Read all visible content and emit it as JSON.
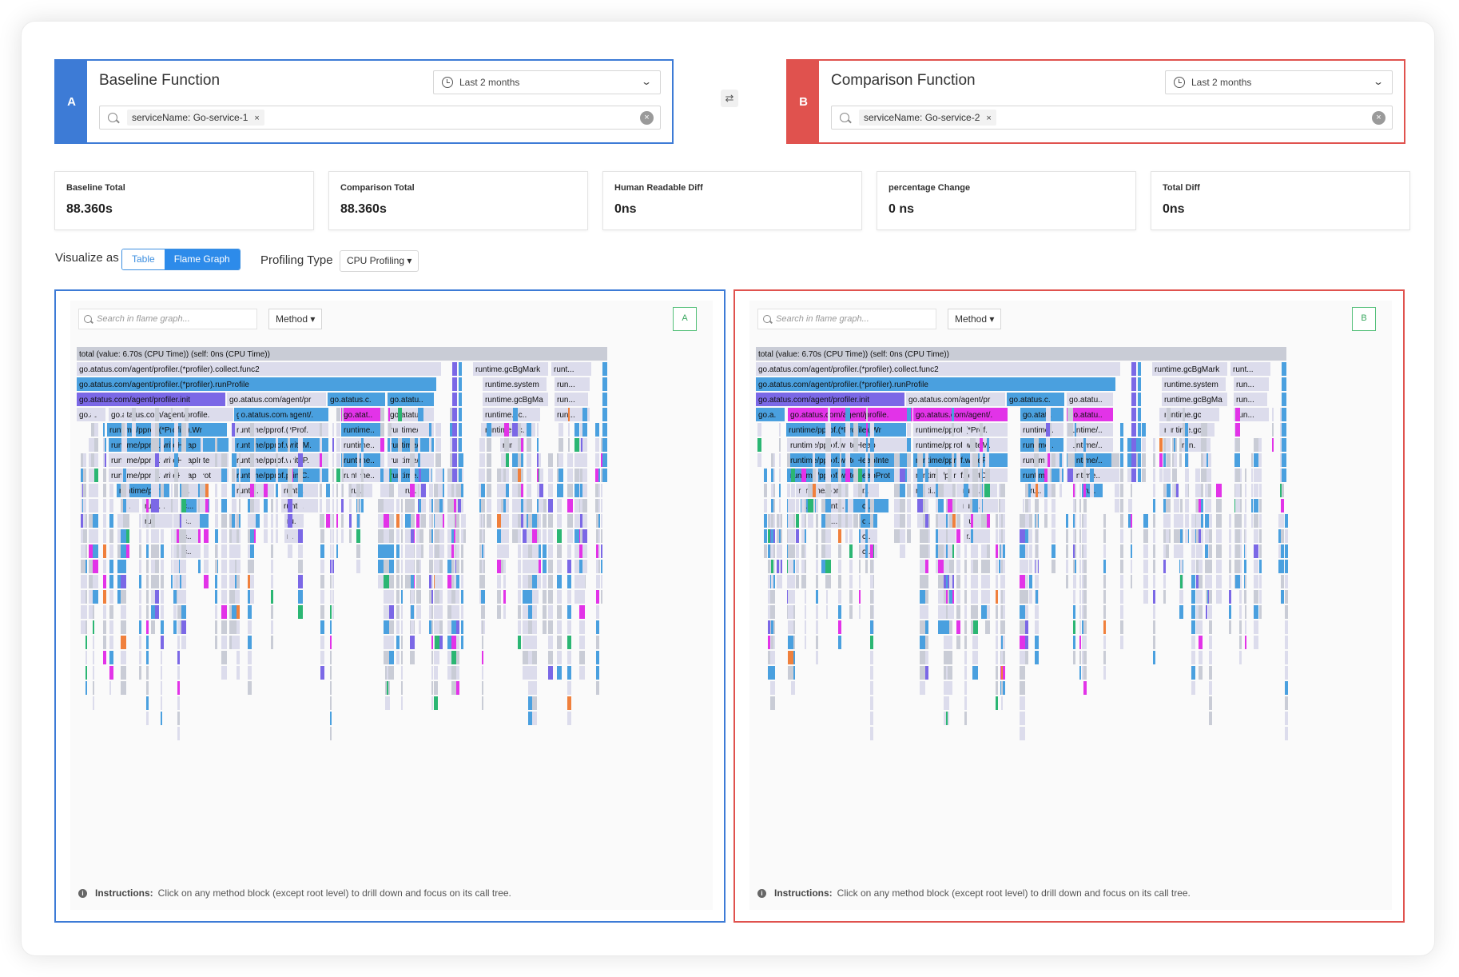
{
  "baseline": {
    "tag": "A",
    "title": "Baseline Function",
    "time_range": "Last 2 months",
    "filter_chip": "serviceName: Go-service-1",
    "chip_close": "×"
  },
  "comparison": {
    "tag": "B",
    "title": "Comparison Function",
    "time_range": "Last 2 months",
    "filter_chip": "serviceName: Go-service-2",
    "chip_close": "×"
  },
  "swap_symbol": "⇄",
  "stats": [
    {
      "label": "Baseline Total",
      "value": "88.360s"
    },
    {
      "label": "Comparison Total",
      "value": "88.360s"
    },
    {
      "label": "Human Readable Diff",
      "value": "0ns"
    },
    {
      "label": "percentage Change",
      "value": "0 ns"
    },
    {
      "label": "Total Diff",
      "value": "0ns"
    }
  ],
  "visualize": {
    "label": "Visualize as",
    "options": [
      "Table",
      "Flame Graph"
    ],
    "selected": "Flame Graph"
  },
  "profiling": {
    "label": "Profiling Type",
    "selected": "CPU Profiling ▾"
  },
  "flame": {
    "search_placeholder": "Search in flame graph...",
    "method_select": "Method ▾",
    "instructions_label": "Instructions:",
    "instructions_text": "Click on any method block (except root level) to drill down and focus on its call tree.",
    "colors": {
      "blue": "#4aa0df",
      "light": "#dcdcec",
      "grey": "#c9ccd6",
      "magenta": "#e233e8",
      "purple": "#7b68e6",
      "green": "#2bb673",
      "orange": "#f0803c"
    }
  },
  "panels": [
    {
      "tag": "A",
      "rows": [
        [
          {
            "t": "total (value: 6.70s (CPU Time)) (self: 0ns (CPU Time))",
            "c": "grey"
          }
        ],
        [
          {
            "t": "go.atatus.com/agent/profiler.(*profiler).collect.func2",
            "c": "light"
          },
          {
            "t": "runtime.gcBgMark...",
            "c": "light"
          },
          {
            "t": "runt...",
            "c": "light"
          }
        ],
        [
          {
            "t": "go.atatus.com/agent/profiler.(*profiler).runProfile",
            "c": "blue"
          },
          {
            "t": "runtime.system...",
            "c": "light"
          },
          {
            "t": "run...",
            "c": "light"
          }
        ],
        [
          {
            "t": "go.atatus.com/agent/profiler.init.c...",
            "c": "purple"
          },
          {
            "t": "go.atatus.com/agent/pr...",
            "c": "light"
          },
          {
            "t": "go.atatus.c...",
            "c": "blue"
          },
          {
            "t": "go.atatu...",
            "c": "blue"
          },
          {
            "t": "runtime.gcBgMa...",
            "c": "light"
          },
          {
            "t": "run...",
            "c": "light"
          }
        ],
        [
          {
            "t": "go.a...",
            "c": "light"
          },
          {
            "t": "go.atatus.com/agent/profile...",
            "c": "light"
          },
          {
            "t": "go.atatus.com/agent/...",
            "c": "blue"
          },
          {
            "t": "go.atat...",
            "c": "magenta"
          },
          {
            "t": "go.atatu...",
            "c": "light"
          },
          {
            "t": "runtime.gc...",
            "c": "light"
          },
          {
            "t": "run...",
            "c": "light"
          }
        ],
        [
          {
            "t": "runtime/pprof.(*Profile).Wr...",
            "c": "blue"
          },
          {
            "t": "runtime/pprof.(*Prof...",
            "c": "light"
          },
          {
            "t": "runtime...",
            "c": "blue"
          },
          {
            "t": "runtime/...",
            "c": "light"
          },
          {
            "t": "runtime.gc...",
            "c": "light"
          }
        ],
        [
          {
            "t": "runtime/pprof.writeHeap",
            "c": "blue"
          },
          {
            "t": "runtime/pprof.writeM...",
            "c": "blue"
          },
          {
            "t": "runtime...",
            "c": "light"
          },
          {
            "t": "runtime/...",
            "c": "blue"
          },
          {
            "t": "run...",
            "c": "light"
          }
        ],
        [
          {
            "t": "runtime/pprof.writeHeapInte...",
            "c": "light"
          },
          {
            "t": "runtime/pprof.writeP...",
            "c": "light"
          },
          {
            "t": "runtime...",
            "c": "blue"
          },
          {
            "t": "runtime/...",
            "c": "light"
          }
        ],
        [
          {
            "t": "runtime/pprof.writeHeapProto",
            "c": "light"
          },
          {
            "t": "runtime/pprof.printC...",
            "c": "blue"
          },
          {
            "t": "runtime...",
            "c": "light"
          },
          {
            "t": "runtime...",
            "c": "blue"
          }
        ],
        [
          {
            "t": "runtime/ppro...",
            "c": "blue"
          },
          {
            "t": "r...",
            "c": "light"
          },
          {
            "t": "runti...",
            "c": "light"
          },
          {
            "t": "runti...",
            "c": "light"
          },
          {
            "t": "ru...",
            "c": "light"
          },
          {
            "t": "ru...",
            "c": "light"
          }
        ],
        [
          {
            "t": "r...",
            "c": "light"
          },
          {
            "t": "runt...",
            "c": "light"
          },
          {
            "t": "c...",
            "c": "blue"
          },
          {
            "t": "runti...",
            "c": "light"
          }
        ],
        [
          {
            "t": "ru...",
            "c": "light"
          },
          {
            "t": "c...",
            "c": "light"
          },
          {
            "t": "ru...",
            "c": "light"
          }
        ],
        [
          {
            "t": "c...",
            "c": "light"
          },
          {
            "t": "r...",
            "c": "light"
          }
        ],
        [
          {
            "t": "c...",
            "c": "light"
          }
        ]
      ]
    },
    {
      "tag": "B",
      "rows": [
        [
          {
            "t": "total (value: 6.70s (CPU Time)) (self: 0ns (CPU Time))",
            "c": "grey"
          }
        ],
        [
          {
            "t": "go.atatus.com/agent/profiler.(*profiler).collect.func2",
            "c": "light"
          },
          {
            "t": "runtime.gcBgMark...",
            "c": "light"
          },
          {
            "t": "runt...",
            "c": "light"
          }
        ],
        [
          {
            "t": "go.atatus.com/agent/profiler.(*profiler).runProfile",
            "c": "blue"
          },
          {
            "t": "runtime.system...",
            "c": "light"
          },
          {
            "t": "run...",
            "c": "light"
          }
        ],
        [
          {
            "t": "go.atatus.com/agent/profiler.init.c...",
            "c": "purple"
          },
          {
            "t": "go.atatus.com/agent/pr...",
            "c": "light"
          },
          {
            "t": "go.atatus.c...",
            "c": "blue"
          },
          {
            "t": "go.atatu...",
            "c": "light"
          },
          {
            "t": "runtime.gcBgMa...",
            "c": "light"
          },
          {
            "t": "run...",
            "c": "light"
          }
        ],
        [
          {
            "t": "go.a...",
            "c": "blue"
          },
          {
            "t": "go.atatus.com/agent/profile...",
            "c": "magenta"
          },
          {
            "t": "go.atatus.com/agent/...",
            "c": "magenta"
          },
          {
            "t": "go.atat...",
            "c": "blue"
          },
          {
            "t": "go.atatu...",
            "c": "magenta"
          },
          {
            "t": "runtime.gc...",
            "c": "light"
          },
          {
            "t": "run...",
            "c": "light"
          }
        ],
        [
          {
            "t": "runtime/pprof.(*Profile).Wr...",
            "c": "blue"
          },
          {
            "t": "runtime/pprof.(*Prof...",
            "c": "light"
          },
          {
            "t": "runtime...",
            "c": "light"
          },
          {
            "t": "runtime/...",
            "c": "light"
          },
          {
            "t": "runtime.gc...",
            "c": "light"
          }
        ],
        [
          {
            "t": "runtime/pprof.writeHeap",
            "c": "light"
          },
          {
            "t": "runtime/pprof.writeM...",
            "c": "light"
          },
          {
            "t": "runtime...",
            "c": "blue"
          },
          {
            "t": "runtime/...",
            "c": "light"
          },
          {
            "t": "run...",
            "c": "light"
          }
        ],
        [
          {
            "t": "runtime/pprof.writeHeapInte...",
            "c": "blue"
          },
          {
            "t": "runtime/pprof.writeP...",
            "c": "blue"
          },
          {
            "t": "runtime...",
            "c": "light"
          },
          {
            "t": "runtime/...",
            "c": "blue"
          }
        ],
        [
          {
            "t": "runtime/pprof.writeHeapProto",
            "c": "blue"
          },
          {
            "t": "runtime/pprof.printC...",
            "c": "light"
          },
          {
            "t": "runtime...",
            "c": "blue"
          },
          {
            "t": "runtime...",
            "c": "light"
          }
        ],
        [
          {
            "t": "runtime/ppro...",
            "c": "light"
          },
          {
            "t": "r...",
            "c": "light"
          },
          {
            "t": "runti...",
            "c": "light"
          },
          {
            "t": "runti...",
            "c": "light"
          },
          {
            "t": "ru...",
            "c": "light"
          },
          {
            "t": "ru...",
            "c": "blue"
          }
        ],
        [
          {
            "t": "r...",
            "c": "blue"
          },
          {
            "t": "runt...",
            "c": "light"
          },
          {
            "t": "c...",
            "c": "blue"
          },
          {
            "t": "runti...",
            "c": "light"
          }
        ],
        [
          {
            "t": "ru...",
            "c": "light"
          },
          {
            "t": "c...",
            "c": "blue"
          },
          {
            "t": "ru...",
            "c": "light"
          }
        ],
        [
          {
            "t": "c...",
            "c": "light"
          },
          {
            "t": "r...",
            "c": "light"
          }
        ],
        [
          {
            "t": "c...",
            "c": "light"
          }
        ]
      ]
    }
  ]
}
